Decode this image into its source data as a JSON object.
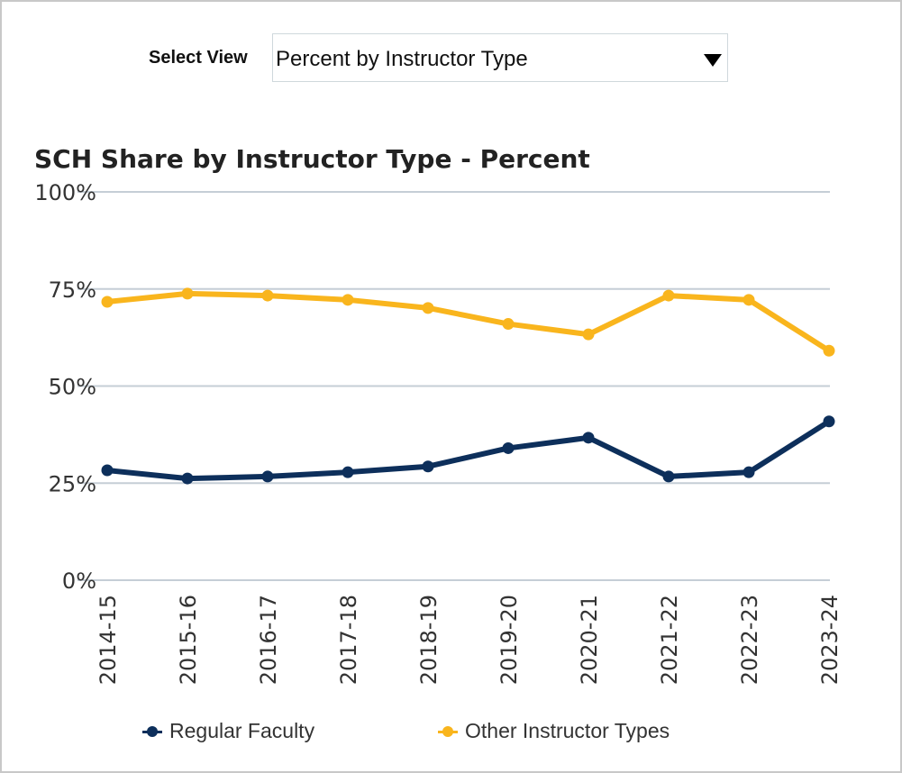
{
  "controls": {
    "select_view_label": "Select View",
    "selected_view": "Percent by Instructor Type"
  },
  "colors": {
    "regular": "#0d2f5b",
    "other": "#f9b51d",
    "grid": "#c5ced6",
    "axis_text": "#333333"
  },
  "chart_data": {
    "type": "line",
    "title": "SCH Share by Instructor Type - Percent",
    "xlabel": "",
    "ylabel": "",
    "categories": [
      "2014-15",
      "2015-16",
      "2016-17",
      "2017-18",
      "2018-19",
      "2019-20",
      "2020-21",
      "2021-22",
      "2022-23",
      "2023-24"
    ],
    "yticks": [
      "0%",
      "25%",
      "50%",
      "75%",
      "100%"
    ],
    "ylim": [
      0,
      100
    ],
    "grid": true,
    "legend_position": "bottom",
    "series": [
      {
        "name": "Regular Faculty",
        "color": "#0d2f5b",
        "values": [
          28.3,
          26.2,
          26.7,
          27.8,
          29.3,
          34.0,
          36.7,
          26.7,
          27.8,
          40.9
        ]
      },
      {
        "name": "Other Instructor Types",
        "color": "#f9b51d",
        "values": [
          71.7,
          73.8,
          73.3,
          72.2,
          70.1,
          66.0,
          63.3,
          73.3,
          72.2,
          59.1
        ]
      }
    ]
  }
}
